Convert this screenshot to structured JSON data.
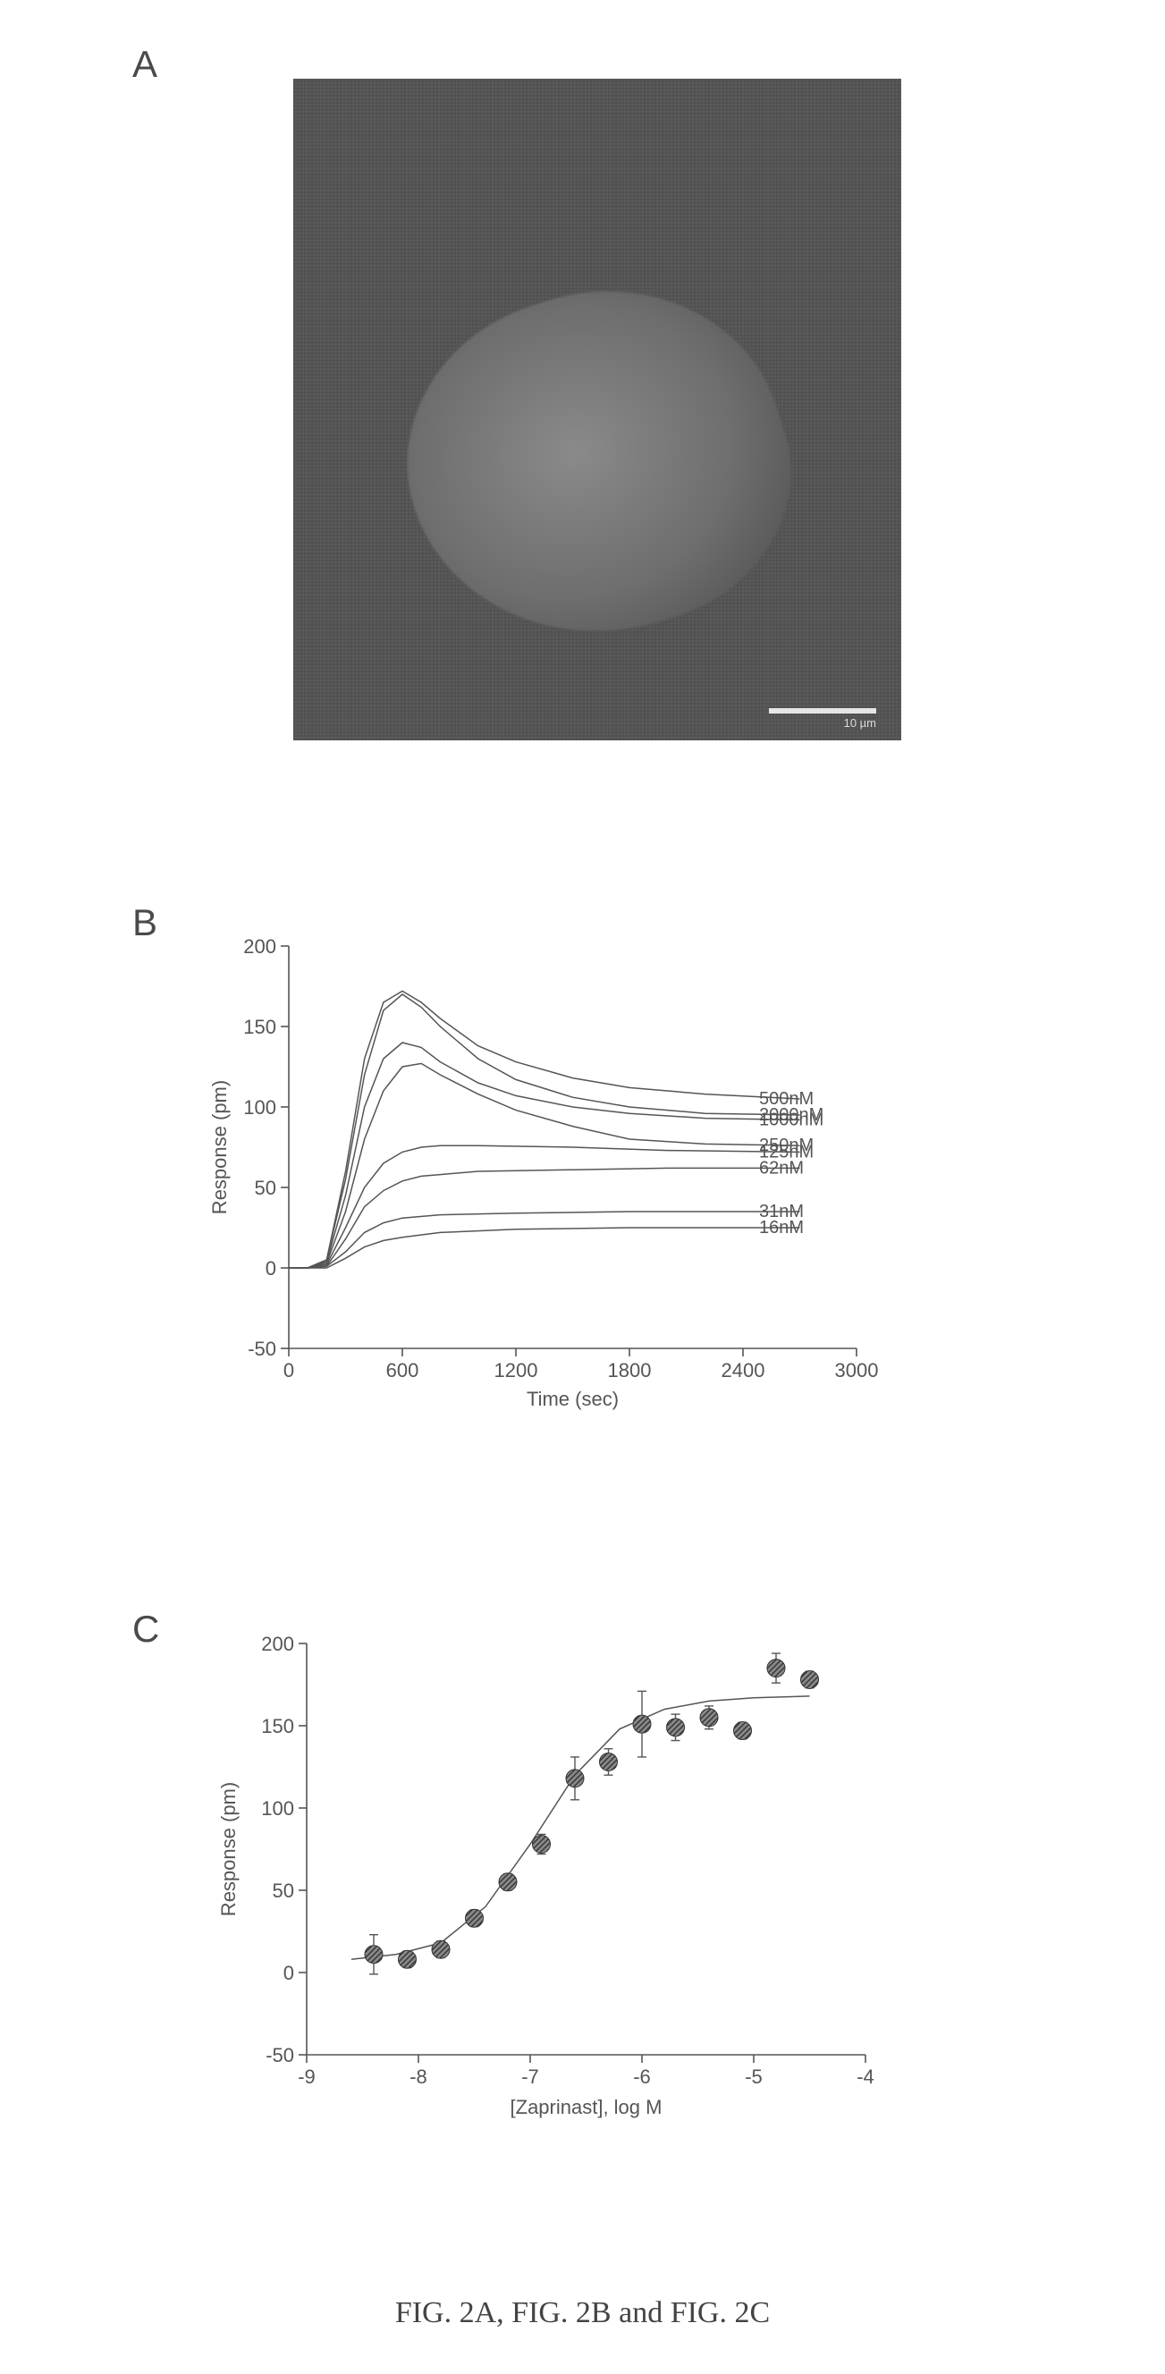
{
  "caption": "FIG. 2A, FIG. 2B and FIG. 2C",
  "panelA": {
    "label": "A",
    "scalebar": "10 µm"
  },
  "panelB": {
    "label": "B",
    "type": "line",
    "xlabel": "Time (sec)",
    "ylabel": "Response (pm)",
    "label_fontsize": 26,
    "tick_fontsize": 22,
    "background_color": "#ffffff",
    "axis_color": "#555555",
    "line_color": "#555555",
    "line_width": 1.5,
    "xlim": [
      0,
      3000
    ],
    "xtick_step": 600,
    "ylim": [
      -50,
      200
    ],
    "ytick_step": 50,
    "series": [
      {
        "label": "500nM",
        "label_x": 2400,
        "data": [
          [
            0,
            0
          ],
          [
            100,
            0
          ],
          [
            200,
            5
          ],
          [
            300,
            60
          ],
          [
            400,
            130
          ],
          [
            500,
            165
          ],
          [
            600,
            172
          ],
          [
            700,
            165
          ],
          [
            800,
            155
          ],
          [
            1000,
            138
          ],
          [
            1200,
            128
          ],
          [
            1500,
            118
          ],
          [
            1800,
            112
          ],
          [
            2200,
            108
          ],
          [
            2700,
            105
          ]
        ]
      },
      {
        "label": "2000nM",
        "label_x": 2400,
        "data": [
          [
            0,
            0
          ],
          [
            100,
            0
          ],
          [
            200,
            5
          ],
          [
            300,
            55
          ],
          [
            400,
            120
          ],
          [
            500,
            160
          ],
          [
            600,
            170
          ],
          [
            700,
            162
          ],
          [
            800,
            150
          ],
          [
            1000,
            130
          ],
          [
            1200,
            117
          ],
          [
            1500,
            106
          ],
          [
            1800,
            100
          ],
          [
            2200,
            96
          ],
          [
            2700,
            95
          ]
        ]
      },
      {
        "label": "1000nM",
        "label_x": 2400,
        "data": [
          [
            0,
            0
          ],
          [
            100,
            0
          ],
          [
            200,
            4
          ],
          [
            300,
            45
          ],
          [
            400,
            100
          ],
          [
            500,
            130
          ],
          [
            600,
            140
          ],
          [
            700,
            137
          ],
          [
            800,
            128
          ],
          [
            1000,
            115
          ],
          [
            1200,
            107
          ],
          [
            1500,
            100
          ],
          [
            1800,
            96
          ],
          [
            2200,
            93
          ],
          [
            2700,
            92
          ]
        ]
      },
      {
        "label": "250nM",
        "label_x": 2400,
        "data": [
          [
            0,
            0
          ],
          [
            100,
            0
          ],
          [
            200,
            3
          ],
          [
            300,
            35
          ],
          [
            400,
            80
          ],
          [
            500,
            110
          ],
          [
            600,
            125
          ],
          [
            700,
            127
          ],
          [
            800,
            120
          ],
          [
            1000,
            108
          ],
          [
            1200,
            98
          ],
          [
            1500,
            88
          ],
          [
            1800,
            80
          ],
          [
            2200,
            77
          ],
          [
            2700,
            76
          ]
        ]
      },
      {
        "label": "125nM",
        "label_x": 2400,
        "data": [
          [
            0,
            0
          ],
          [
            100,
            0
          ],
          [
            200,
            2
          ],
          [
            300,
            25
          ],
          [
            400,
            50
          ],
          [
            500,
            65
          ],
          [
            600,
            72
          ],
          [
            700,
            75
          ],
          [
            800,
            76
          ],
          [
            1000,
            76
          ],
          [
            1500,
            75
          ],
          [
            2000,
            73
          ],
          [
            2700,
            72
          ]
        ]
      },
      {
        "label": "62nM",
        "label_x": 2400,
        "data": [
          [
            0,
            0
          ],
          [
            100,
            0
          ],
          [
            200,
            1
          ],
          [
            300,
            18
          ],
          [
            400,
            38
          ],
          [
            500,
            48
          ],
          [
            600,
            54
          ],
          [
            700,
            57
          ],
          [
            800,
            58
          ],
          [
            1000,
            60
          ],
          [
            1500,
            61
          ],
          [
            2000,
            62
          ],
          [
            2700,
            62
          ]
        ]
      },
      {
        "label": "31nM",
        "label_x": 2400,
        "data": [
          [
            0,
            0
          ],
          [
            100,
            0
          ],
          [
            200,
            1
          ],
          [
            300,
            10
          ],
          [
            400,
            22
          ],
          [
            500,
            28
          ],
          [
            600,
            31
          ],
          [
            800,
            33
          ],
          [
            1200,
            34
          ],
          [
            1800,
            35
          ],
          [
            2700,
            35
          ]
        ]
      },
      {
        "label": "16nM",
        "label_x": 2400,
        "data": [
          [
            0,
            0
          ],
          [
            100,
            0
          ],
          [
            200,
            0
          ],
          [
            300,
            6
          ],
          [
            400,
            13
          ],
          [
            500,
            17
          ],
          [
            600,
            19
          ],
          [
            800,
            22
          ],
          [
            1200,
            24
          ],
          [
            1800,
            25
          ],
          [
            2700,
            25
          ]
        ]
      }
    ]
  },
  "panelC": {
    "label": "C",
    "type": "scatter-fit",
    "xlabel": "[Zaprinast], log M",
    "ylabel": "Response (pm)",
    "label_fontsize": 26,
    "tick_fontsize": 22,
    "background_color": "#ffffff",
    "axis_color": "#555555",
    "point_color": "#555555",
    "marker": "circle-hatched",
    "marker_size": 10,
    "fit_color": "#555555",
    "fit_width": 1.5,
    "xlim": [
      -9,
      -4
    ],
    "xtick_step": 1,
    "ylim": [
      -50,
      200
    ],
    "ytick_step": 50,
    "points": [
      {
        "x": -8.4,
        "y": 11,
        "err": 12
      },
      {
        "x": -8.1,
        "y": 8,
        "err": 5
      },
      {
        "x": -7.8,
        "y": 14,
        "err": 5
      },
      {
        "x": -7.5,
        "y": 33,
        "err": 5
      },
      {
        "x": -7.2,
        "y": 55,
        "err": 5
      },
      {
        "x": -6.9,
        "y": 78,
        "err": 6
      },
      {
        "x": -6.6,
        "y": 118,
        "err": 13
      },
      {
        "x": -6.3,
        "y": 128,
        "err": 8
      },
      {
        "x": -6.0,
        "y": 151,
        "err": 20
      },
      {
        "x": -5.7,
        "y": 149,
        "err": 8
      },
      {
        "x": -5.4,
        "y": 155,
        "err": 7
      },
      {
        "x": -5.1,
        "y": 147,
        "err": 5
      },
      {
        "x": -4.8,
        "y": 185,
        "err": 9
      },
      {
        "x": -4.5,
        "y": 178,
        "err": 5
      }
    ],
    "fit": [
      [
        -8.6,
        8
      ],
      [
        -8.2,
        11
      ],
      [
        -7.8,
        18
      ],
      [
        -7.4,
        40
      ],
      [
        -7.0,
        78
      ],
      [
        -6.6,
        120
      ],
      [
        -6.2,
        148
      ],
      [
        -5.8,
        160
      ],
      [
        -5.4,
        165
      ],
      [
        -5.0,
        167
      ],
      [
        -4.5,
        168
      ]
    ]
  }
}
